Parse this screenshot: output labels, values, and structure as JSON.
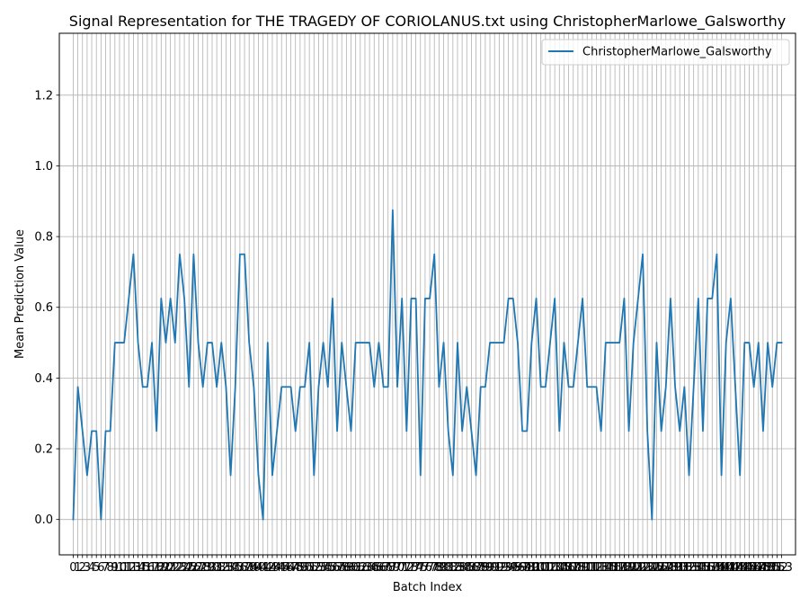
{
  "chart_data": {
    "type": "line",
    "title": "Signal Representation for THE TRAGEDY OF CORIOLANUS.txt using ChristopherMarlowe_Galsworthy",
    "xlabel": "Batch Index",
    "ylabel": "Mean Prediction Value",
    "ylim": [
      -0.1,
      1.375
    ],
    "xlim": [
      -3.0,
      156.0
    ],
    "yticks": [
      0.0,
      0.2,
      0.4,
      0.6,
      0.8,
      1.0,
      1.2
    ],
    "ytick_labels": [
      "0.0",
      "0.2",
      "0.4",
      "0.6",
      "0.8",
      "1.0",
      "1.2"
    ],
    "xticks": [
      0,
      1,
      2,
      3,
      4,
      5,
      6,
      7,
      8,
      9,
      10,
      11,
      12,
      13,
      14,
      15,
      16,
      17,
      18,
      19,
      20,
      21,
      22,
      23,
      24,
      25,
      26,
      27,
      28,
      29,
      30,
      31,
      32,
      33,
      34,
      35,
      36,
      37,
      38,
      39,
      40,
      41,
      42,
      43,
      44,
      45,
      46,
      47,
      48,
      49,
      50,
      51,
      52,
      53,
      54,
      55,
      56,
      57,
      58,
      59,
      60,
      61,
      62,
      63,
      64,
      65,
      66,
      67,
      68,
      69,
      70,
      71,
      72,
      73,
      74,
      75,
      76,
      77,
      78,
      79,
      80,
      81,
      82,
      83,
      84,
      85,
      86,
      87,
      88,
      89,
      90,
      91,
      92,
      93,
      94,
      95,
      96,
      97,
      98,
      99,
      100,
      101,
      102,
      103,
      104,
      105,
      106,
      107,
      108,
      109,
      110,
      111,
      112,
      113,
      114,
      115,
      116,
      117,
      118,
      119,
      120,
      121,
      122,
      123,
      124,
      125,
      126,
      127,
      128,
      129,
      130,
      131,
      132,
      133,
      134,
      135,
      136,
      137,
      138,
      139,
      140,
      141,
      142,
      143,
      144,
      145,
      146,
      147,
      148,
      149,
      150,
      151,
      152,
      153
    ],
    "grid": true,
    "legend_position": "top-right",
    "series": [
      {
        "name": "ChristopherMarlowe_Galsworthy",
        "color": "#1f77b4",
        "x": [
          0,
          1,
          2,
          3,
          4,
          5,
          6,
          7,
          8,
          9,
          10,
          11,
          12,
          13,
          14,
          15,
          16,
          17,
          18,
          19,
          20,
          21,
          22,
          23,
          24,
          25,
          26,
          27,
          28,
          29,
          30,
          31,
          32,
          33,
          34,
          35,
          36,
          37,
          38,
          39,
          40,
          41,
          42,
          43,
          44,
          45,
          46,
          47,
          48,
          49,
          50,
          51,
          52,
          53,
          54,
          55,
          56,
          57,
          58,
          59,
          60,
          61,
          62,
          63,
          64,
          65,
          66,
          67,
          68,
          69,
          70,
          71,
          72,
          73,
          74,
          75,
          76,
          77,
          78,
          79,
          80,
          81,
          82,
          83,
          84,
          85,
          86,
          87,
          88,
          89,
          90,
          91,
          92,
          93,
          94,
          95,
          96,
          97,
          98,
          99,
          100,
          101,
          102,
          103,
          104,
          105,
          106,
          107,
          108,
          109,
          110,
          111,
          112,
          113,
          114,
          115,
          116,
          117,
          118,
          119,
          120,
          121,
          122,
          123,
          124,
          125,
          126,
          127,
          128,
          129,
          130,
          131,
          132,
          133,
          134,
          135,
          136,
          137,
          138,
          139,
          140,
          141,
          142,
          143,
          144,
          145,
          146,
          147,
          148,
          149,
          150,
          151,
          152,
          153
        ],
        "y": [
          0.0,
          0.375,
          0.25,
          0.125,
          0.25,
          0.25,
          0.0,
          0.25,
          0.25,
          0.5,
          0.5,
          0.5,
          0.625,
          0.75,
          0.5,
          0.375,
          0.375,
          0.5,
          0.25,
          0.625,
          0.5,
          0.625,
          0.5,
          0.75,
          0.625,
          0.375,
          0.75,
          0.5,
          0.375,
          0.5,
          0.5,
          0.375,
          0.5,
          0.375,
          0.125,
          0.375,
          0.75,
          0.75,
          0.5,
          0.375,
          0.125,
          0.0,
          0.5,
          0.125,
          0.25,
          0.375,
          0.375,
          0.375,
          0.25,
          0.375,
          0.375,
          0.5,
          0.125,
          0.375,
          0.5,
          0.375,
          0.625,
          0.25,
          0.5,
          0.375,
          0.25,
          0.5,
          0.5,
          0.5,
          0.5,
          0.375,
          0.5,
          0.375,
          0.375,
          0.875,
          0.375,
          0.625,
          0.25,
          0.625,
          0.625,
          0.125,
          0.625,
          0.625,
          0.75,
          0.375,
          0.5,
          0.25,
          0.125,
          0.5,
          0.25,
          0.375,
          0.25,
          0.125,
          0.375,
          0.375,
          0.5,
          0.5,
          0.5,
          0.5,
          0.625,
          0.625,
          0.5,
          0.25,
          0.25,
          0.5,
          0.625,
          0.375,
          0.375,
          0.5,
          0.625,
          0.25,
          0.5,
          0.375,
          0.375,
          0.5,
          0.625,
          0.375,
          0.375,
          0.375,
          0.25,
          0.5,
          0.5,
          0.5,
          0.5,
          0.625,
          0.25,
          0.5,
          0.625,
          0.75,
          0.25,
          0.0,
          0.5,
          0.25,
          0.375,
          0.625,
          0.375,
          0.25,
          0.375,
          0.125,
          0.375,
          0.625,
          0.25,
          0.625,
          0.625,
          0.75,
          0.125,
          0.5,
          0.625,
          0.375,
          0.125,
          0.5,
          0.5,
          0.375,
          0.5,
          0.25,
          0.5,
          0.375,
          0.5,
          0.5
        ]
      }
    ]
  }
}
